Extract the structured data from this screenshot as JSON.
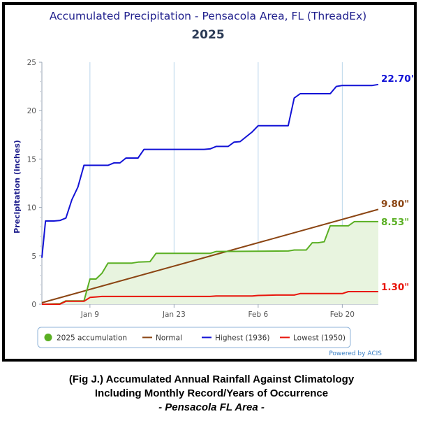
{
  "chart_data": {
    "type": "line",
    "title": "Accumulated Precipitation - Pensacola Area, FL (ThreadEx)",
    "subtitle": "2025",
    "ylabel": "Precipitation (inches)",
    "ylim": [
      0,
      25
    ],
    "xlim": [
      0,
      56
    ],
    "yticks": [
      0,
      5,
      10,
      15,
      20,
      25
    ],
    "xticks": [
      {
        "x": 8,
        "label": "Jan 9"
      },
      {
        "x": 22,
        "label": "Jan 23"
      },
      {
        "x": 36,
        "label": "Feb 6"
      },
      {
        "x": 50,
        "label": "Feb 20"
      }
    ],
    "grid": true,
    "legend_position": "bottom",
    "credit": "Powered by ACIS",
    "series": [
      {
        "name": "2025 accumulation",
        "color": "#5aaf23",
        "fill": "#e8f4df",
        "points": [
          [
            0,
            0
          ],
          [
            3,
            0.05
          ],
          [
            4,
            0.35
          ],
          [
            5,
            0.35
          ],
          [
            7,
            0.35
          ],
          [
            8,
            2.6
          ],
          [
            9,
            2.6
          ],
          [
            10,
            3.2
          ],
          [
            11,
            4.25
          ],
          [
            15,
            4.25
          ],
          [
            16,
            4.35
          ],
          [
            18,
            4.4
          ],
          [
            19,
            5.25
          ],
          [
            28,
            5.25
          ],
          [
            29,
            5.45
          ],
          [
            41,
            5.5
          ],
          [
            42,
            5.6
          ],
          [
            44,
            5.6
          ],
          [
            45,
            6.35
          ],
          [
            46,
            6.35
          ],
          [
            47,
            6.45
          ],
          [
            48,
            8.1
          ],
          [
            51,
            8.1
          ],
          [
            52,
            8.53
          ],
          [
            56,
            8.53
          ]
        ],
        "end_label": "8.53\""
      },
      {
        "name": "Normal",
        "color": "#8b4513",
        "points": [
          [
            0,
            0.15
          ],
          [
            56,
            9.8
          ]
        ],
        "end_label": "9.80\""
      },
      {
        "name": "Highest (1936)",
        "color": "#1212d6",
        "points": [
          [
            0,
            4.8
          ],
          [
            0.6,
            8.6
          ],
          [
            2,
            8.6
          ],
          [
            3,
            8.65
          ],
          [
            4,
            8.9
          ],
          [
            5,
            10.8
          ],
          [
            6,
            12.1
          ],
          [
            7,
            14.35
          ],
          [
            11,
            14.35
          ],
          [
            12,
            14.6
          ],
          [
            13,
            14.6
          ],
          [
            14,
            15.1
          ],
          [
            16,
            15.1
          ],
          [
            17,
            16.0
          ],
          [
            27,
            16.0
          ],
          [
            28,
            16.05
          ],
          [
            29,
            16.3
          ],
          [
            31,
            16.3
          ],
          [
            32,
            16.75
          ],
          [
            33,
            16.8
          ],
          [
            34,
            17.3
          ],
          [
            35,
            17.8
          ],
          [
            36,
            18.45
          ],
          [
            41,
            18.45
          ],
          [
            42,
            21.3
          ],
          [
            43,
            21.75
          ],
          [
            48,
            21.75
          ],
          [
            49,
            22.5
          ],
          [
            50,
            22.6
          ],
          [
            55,
            22.6
          ],
          [
            56,
            22.7
          ]
        ],
        "end_label": "22.70\""
      },
      {
        "name": "Lowest (1950)",
        "color": "#e8150c",
        "points": [
          [
            0,
            0
          ],
          [
            3,
            0
          ],
          [
            4,
            0.3
          ],
          [
            7,
            0.3
          ],
          [
            8,
            0.7
          ],
          [
            9,
            0.75
          ],
          [
            10,
            0.8
          ],
          [
            28,
            0.8
          ],
          [
            29,
            0.85
          ],
          [
            35,
            0.85
          ],
          [
            36,
            0.9
          ],
          [
            39,
            0.95
          ],
          [
            42,
            0.95
          ],
          [
            43,
            1.1
          ],
          [
            50,
            1.1
          ],
          [
            51,
            1.3
          ],
          [
            56,
            1.3
          ]
        ],
        "end_label": "1.30\""
      }
    ]
  },
  "caption": {
    "line1": "(Fig J.) Accumulated Annual Rainfall Against  Climatology",
    "line2": "Including Monthly Record/Years of Occurrence",
    "line3": "- Pensacola FL Area -"
  }
}
